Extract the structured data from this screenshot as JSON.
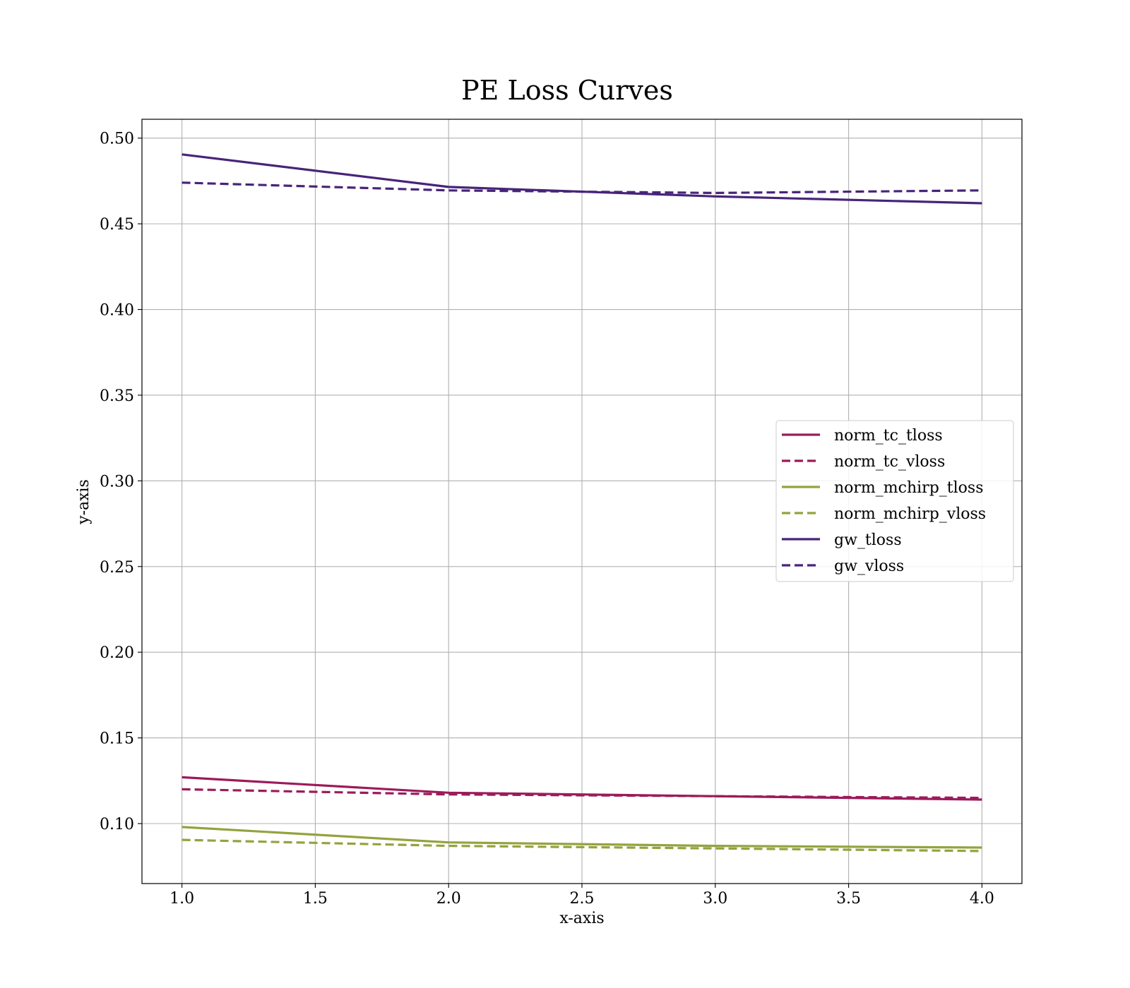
{
  "chart_data": {
    "type": "line",
    "title": "PE Loss Curves",
    "xlabel": "x-axis",
    "ylabel": "y-axis",
    "x": [
      1.0,
      2.0,
      3.0,
      4.0
    ],
    "xlim": [
      0.85,
      4.15
    ],
    "ylim": [
      0.065,
      0.511
    ],
    "xticks": [
      1.0,
      1.5,
      2.0,
      2.5,
      3.0,
      3.5,
      4.0
    ],
    "xtick_labels": [
      "1.0",
      "1.5",
      "2.0",
      "2.5",
      "3.0",
      "3.5",
      "4.0"
    ],
    "yticks": [
      0.1,
      0.15,
      0.2,
      0.25,
      0.3,
      0.35,
      0.4,
      0.45,
      0.5
    ],
    "ytick_labels": [
      "0.10",
      "0.15",
      "0.20",
      "0.25",
      "0.30",
      "0.35",
      "0.40",
      "0.45",
      "0.50"
    ],
    "grid": true,
    "legend_position": "center-right",
    "series": [
      {
        "name": "norm_tc_tloss",
        "color": "#9b1b5a",
        "style": "solid",
        "values": [
          0.127,
          0.118,
          0.116,
          0.114
        ]
      },
      {
        "name": "norm_tc_vloss",
        "color": "#9b1b5a",
        "style": "dashed",
        "values": [
          0.12,
          0.117,
          0.116,
          0.115
        ]
      },
      {
        "name": "norm_mchirp_tloss",
        "color": "#95a23f",
        "style": "solid",
        "values": [
          0.098,
          0.089,
          0.087,
          0.086
        ]
      },
      {
        "name": "norm_mchirp_vloss",
        "color": "#95a23f",
        "style": "dashed",
        "values": [
          0.0905,
          0.087,
          0.0855,
          0.084
        ]
      },
      {
        "name": "gw_tloss",
        "color": "#47247a",
        "style": "solid",
        "values": [
          0.4905,
          0.4715,
          0.466,
          0.462
        ]
      },
      {
        "name": "gw_vloss",
        "color": "#47247a",
        "style": "dashed",
        "values": [
          0.474,
          0.4695,
          0.468,
          0.4695
        ]
      }
    ]
  }
}
